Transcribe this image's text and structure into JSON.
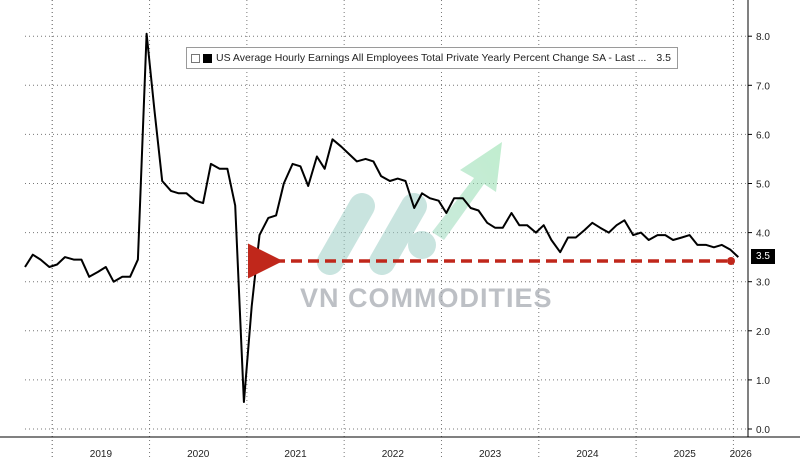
{
  "chart_data": {
    "type": "line",
    "title": "",
    "xlabel": "",
    "ylabel": "",
    "ylim": [
      0.0,
      8.7
    ],
    "xlim": [
      2018.72,
      2026.15
    ],
    "y_ticks": [
      "0.0",
      "1.0",
      "2.0",
      "3.0",
      "4.0",
      "5.0",
      "6.0",
      "7.0",
      "8.0"
    ],
    "x_labels": [
      "2019",
      "2020",
      "2021",
      "2022",
      "2023",
      "2024",
      "2025",
      "2026"
    ],
    "grid": true,
    "legend": {
      "placement": "top",
      "label": "US Average Hourly Earnings All Employees Total Private Yearly Percent Change SA - Last ...",
      "last_value": "3.5"
    },
    "last_value_tag": "3.5",
    "annotation": "dashed red arrow marking the latest value 3.5 back to 2021",
    "colors": {
      "series": "#000000",
      "arrow": "#c0271b",
      "tag_bg": "#000000",
      "tag_text": "#ffffff"
    },
    "series": [
      {
        "name": "US Average Hourly Earnings All Employees Total Private Yearly Percent Change SA",
        "x": [
          2018.72,
          2018.8,
          2018.88,
          2018.97,
          2019.05,
          2019.13,
          2019.22,
          2019.3,
          2019.38,
          2019.47,
          2019.55,
          2019.63,
          2019.72,
          2019.8,
          2019.88,
          2019.97,
          2020.05,
          2020.13,
          2020.22,
          2020.3,
          2020.38,
          2020.47,
          2020.55,
          2020.63,
          2020.72,
          2020.8,
          2020.88,
          2020.97,
          2021.05,
          2021.13,
          2021.22,
          2021.3,
          2021.38,
          2021.47,
          2021.55,
          2021.63,
          2021.72,
          2021.8,
          2021.88,
          2021.97,
          2022.05,
          2022.13,
          2022.22,
          2022.3,
          2022.38,
          2022.47,
          2022.55,
          2022.63,
          2022.72,
          2022.8,
          2022.88,
          2022.97,
          2023.05,
          2023.13,
          2023.22,
          2023.3,
          2023.38,
          2023.47,
          2023.55,
          2023.63,
          2023.72,
          2023.8,
          2023.88,
          2023.97,
          2024.05,
          2024.13,
          2024.22,
          2024.3,
          2024.38,
          2024.47,
          2024.55,
          2024.63,
          2024.72,
          2024.8,
          2024.88,
          2024.97,
          2025.05,
          2025.13,
          2025.22,
          2025.3,
          2025.38,
          2025.47,
          2025.55,
          2025.63,
          2025.72,
          2025.8,
          2025.88,
          2025.97,
          2026.05
        ],
        "values": [
          3.3,
          3.55,
          3.45,
          3.3,
          3.35,
          3.5,
          3.45,
          3.45,
          3.1,
          3.2,
          3.3,
          3.0,
          3.1,
          3.1,
          3.45,
          8.05,
          6.5,
          5.05,
          4.85,
          4.8,
          4.8,
          4.65,
          4.6,
          5.4,
          5.3,
          5.3,
          4.55,
          0.55,
          2.5,
          3.95,
          4.3,
          4.35,
          5.0,
          5.4,
          5.35,
          4.95,
          5.55,
          5.3,
          5.9,
          5.75,
          5.6,
          5.45,
          5.5,
          5.45,
          5.15,
          5.05,
          5.1,
          5.05,
          4.5,
          4.8,
          4.7,
          4.65,
          4.4,
          4.7,
          4.7,
          4.5,
          4.45,
          4.2,
          4.1,
          4.1,
          4.4,
          4.15,
          4.15,
          4.0,
          4.15,
          3.85,
          3.6,
          3.9,
          3.9,
          4.05,
          4.2,
          4.1,
          4.0,
          4.15,
          4.25,
          3.95,
          4.0,
          3.85,
          3.95,
          3.95,
          3.85,
          3.9,
          3.95,
          3.75,
          3.75,
          3.7,
          3.75,
          3.65,
          3.5
        ]
      }
    ]
  },
  "watermark": {
    "text": "VN COMMODITIES"
  }
}
